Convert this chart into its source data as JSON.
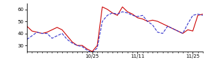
{
  "red_y": [
    46,
    42,
    41,
    40,
    41,
    43,
    45,
    43,
    38,
    33,
    30,
    30,
    27,
    25,
    30,
    62,
    60,
    57,
    55,
    62,
    58,
    56,
    53,
    52,
    50,
    51,
    50,
    48,
    46,
    44,
    42,
    40,
    43,
    42,
    55,
    56
  ],
  "blue_y": [
    35,
    38,
    41,
    40,
    40,
    36,
    38,
    40,
    35,
    32,
    30,
    29,
    26,
    24,
    28,
    50,
    55,
    57,
    56,
    58,
    57,
    55,
    54,
    55,
    50,
    47,
    41,
    40,
    46,
    44,
    42,
    40,
    48,
    55,
    56,
    55
  ],
  "ylim": [
    25,
    65
  ],
  "yticks": [
    30,
    40,
    50,
    60
  ],
  "x_tick_pos": [
    13,
    22,
    33
  ],
  "x_tick_labels": [
    "10/25",
    "11/11",
    "11/25"
  ],
  "red_color": "#cc0000",
  "blue_color": "#3333cc",
  "bg_color": "#ffffff",
  "linewidth": 0.8
}
